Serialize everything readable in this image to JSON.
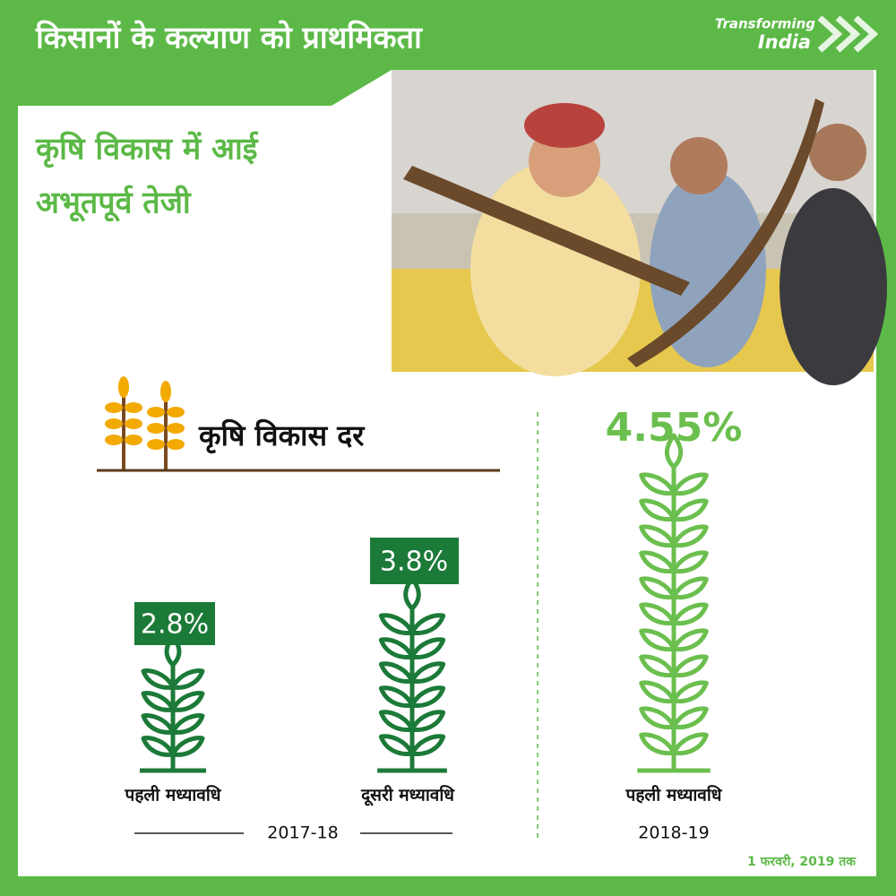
{
  "header": {
    "title": "किसानों के कल्याण को प्राथमिकता",
    "logo": [
      "Transforming",
      "India"
    ]
  },
  "headline": [
    "कृषि विकास में आई",
    "अभूतपूर्व तेजी"
  ],
  "section_title": "कृषि विकास दर",
  "items": [
    {
      "value": "2.8%",
      "label": "पहली मध्यावधि"
    },
    {
      "value": "3.8%",
      "label": "दूसरी मध्यावधि"
    },
    {
      "value": "4.55%",
      "label": "पहली मध्यावधि"
    }
  ],
  "periods": [
    "2017-18",
    "2018-19"
  ],
  "footnote": "1 फरवरी, 2019 तक"
}
